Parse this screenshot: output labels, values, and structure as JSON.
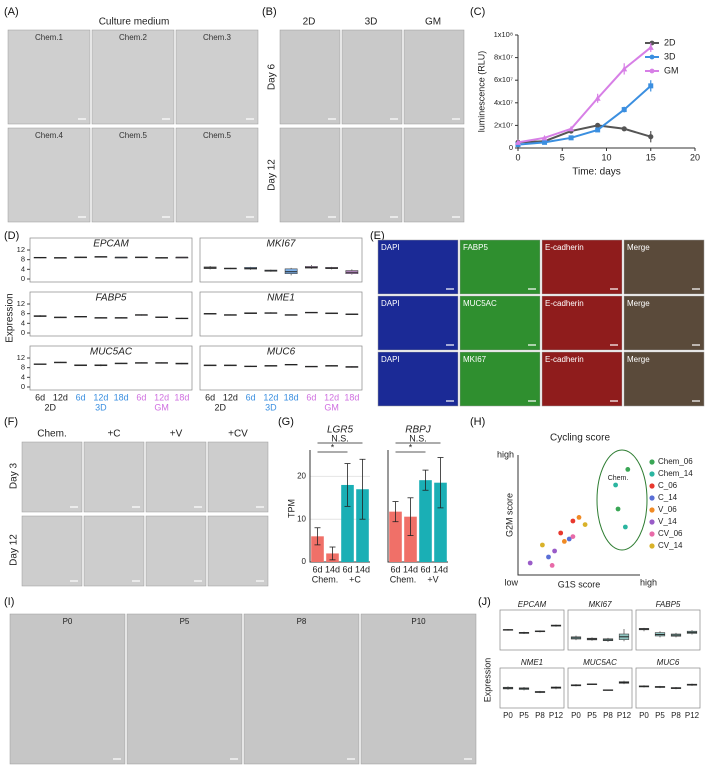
{
  "panel_labels": [
    "(A)",
    "(B)",
    "(C)",
    "(D)",
    "(E)",
    "(F)",
    "(G)",
    "(H)",
    "(I)",
    "(J)"
  ],
  "A": {
    "title": "Culture medium",
    "images": [
      "Chem.1",
      "Chem.2",
      "Chem.3",
      "Chem.4",
      "Chem.5",
      "Chem.5"
    ]
  },
  "B": {
    "columns": [
      "2D",
      "3D",
      "GM"
    ],
    "rows": [
      "Day 6",
      "Day 12"
    ]
  },
  "E": {
    "rows": [
      [
        "DAPI",
        "FABP5",
        "E-cadherin",
        "Merge"
      ],
      [
        "DAPI",
        "MUC5AC",
        "E-cadherin",
        "Merge"
      ],
      [
        "DAPI",
        "MKI67",
        "E-cadherin",
        "Merge"
      ]
    ]
  },
  "F": {
    "columns": [
      "Chem.",
      "+C",
      "+V",
      "+CV"
    ],
    "rows": [
      "Day 3",
      "Day 12"
    ]
  },
  "I": {
    "images": [
      "P0",
      "P5",
      "P8",
      "P10"
    ]
  },
  "chart_data": [
    {
      "type": "line",
      "xlabel": "Time: days",
      "ylabel": "luminescence (RLU)",
      "x": [
        0,
        3,
        6,
        9,
        12,
        15
      ],
      "xlim": [
        0,
        20
      ],
      "xticks": [
        0,
        5,
        10,
        15,
        20
      ],
      "ylim": [
        0,
        100000000
      ],
      "yticks": [
        0,
        {
          "value": 20000000,
          "label": "2x10⁷"
        },
        {
          "value": 40000000,
          "label": "4x10⁷"
        },
        {
          "value": 60000000,
          "label": "6x10⁷"
        },
        {
          "value": 80000000,
          "label": "8x10⁷"
        },
        {
          "value": 100000000,
          "label": "1x10⁸"
        }
      ],
      "legend": "upper right",
      "series": [
        {
          "name": "2D",
          "color": "#555555",
          "values": [
            5000000,
            6000000,
            15000000,
            20000000,
            17000000,
            10000000
          ],
          "errors": [
            500000,
            800000,
            1500000,
            1500000,
            1500000,
            5000000
          ]
        },
        {
          "name": "3D",
          "color": "#3b8fe0",
          "values": [
            3000000,
            5000000,
            9000000,
            16000000,
            34000000,
            55000000
          ],
          "errors": [
            500000,
            800000,
            1200000,
            1500000,
            2500000,
            5000000
          ]
        },
        {
          "name": "GM",
          "color": "#d77fe6",
          "values": [
            5000000,
            9000000,
            17000000,
            44000000,
            70000000,
            89000000
          ],
          "errors": [
            800000,
            1000000,
            2000000,
            4000000,
            5000000,
            4000000
          ]
        }
      ]
    },
    {
      "type": "box",
      "ylabel": "Expression",
      "ylim": [
        0,
        12
      ],
      "yticks": [
        0,
        4,
        8,
        12
      ],
      "groups": [
        {
          "name": "2D",
          "color": "#222222",
          "box_color": "#8c8c8c",
          "categories": [
            "6d",
            "12d"
          ]
        },
        {
          "name": "3D",
          "color": "#3b8fe0",
          "box_color": "#7fb2ea",
          "categories": [
            "6d",
            "12d",
            "18d"
          ]
        },
        {
          "name": "GM",
          "color": "#cf6fe0",
          "box_color": "#dca3e8",
          "categories": [
            "6d",
            "12d",
            "18d"
          ]
        }
      ],
      "facets": [
        {
          "title": "EPCAM",
          "boxes": [
            [
              8.6,
              8.7,
              8.9,
              9.0,
              9.1
            ],
            [
              8.7,
              8.8,
              8.8,
              8.9,
              8.9
            ],
            [
              8.8,
              8.9,
              9.0,
              9.1,
              9.2
            ],
            [
              9.0,
              9.1,
              9.2,
              9.3,
              9.4
            ],
            [
              8.8,
              8.9,
              9.0,
              9.0,
              9.1
            ],
            [
              8.8,
              8.9,
              9.0,
              9.1,
              9.2
            ],
            [
              8.6,
              8.7,
              8.8,
              8.9,
              9.0
            ],
            [
              8.8,
              8.9,
              9.0,
              9.0,
              9.1
            ]
          ]
        },
        {
          "title": "MKI67",
          "boxes": [
            [
              4.0,
              4.3,
              4.6,
              5.0,
              5.4
            ],
            [
              4.1,
              4.2,
              4.4,
              4.5,
              4.6
            ],
            [
              3.8,
              4.1,
              4.4,
              4.8,
              5.0
            ],
            [
              3.0,
              3.2,
              3.4,
              3.7,
              3.9
            ],
            [
              1.5,
              2.2,
              3.0,
              4.2,
              4.6
            ],
            [
              4.2,
              4.5,
              4.8,
              5.2,
              5.8
            ],
            [
              4.0,
              4.3,
              4.5,
              4.8,
              5.0
            ],
            [
              1.8,
              2.2,
              2.8,
              3.5,
              4.0
            ]
          ]
        },
        {
          "title": "FABP5",
          "boxes": [
            [
              6.6,
              6.8,
              7.0,
              7.2,
              7.4
            ],
            [
              6.3,
              6.4,
              6.5,
              6.6,
              6.7
            ],
            [
              6.5,
              6.6,
              6.8,
              6.9,
              7.0
            ],
            [
              6.0,
              6.1,
              6.3,
              6.4,
              6.5
            ],
            [
              6.1,
              6.2,
              6.3,
              6.4,
              6.5
            ],
            [
              7.2,
              7.3,
              7.5,
              7.6,
              7.7
            ],
            [
              6.2,
              6.4,
              6.5,
              6.7,
              6.8
            ],
            [
              5.8,
              5.9,
              6.0,
              6.2,
              6.3
            ]
          ]
        },
        {
          "title": "NME1",
          "boxes": [
            [
              7.8,
              7.9,
              8.0,
              8.1,
              8.2
            ],
            [
              7.3,
              7.4,
              7.5,
              7.6,
              7.7
            ],
            [
              7.9,
              8.0,
              8.2,
              8.4,
              8.5
            ],
            [
              8.0,
              8.2,
              8.3,
              8.4,
              8.6
            ],
            [
              7.3,
              7.4,
              7.5,
              7.6,
              7.7
            ],
            [
              8.3,
              8.4,
              8.5,
              8.6,
              8.7
            ],
            [
              8.0,
              8.1,
              8.2,
              8.3,
              8.4
            ],
            [
              7.6,
              7.7,
              7.8,
              7.9,
              8.0
            ]
          ]
        },
        {
          "title": "MUC5AC",
          "boxes": [
            [
              9.3,
              9.4,
              9.5,
              9.6,
              9.7
            ],
            [
              10.0,
              10.1,
              10.2,
              10.3,
              10.4
            ],
            [
              8.7,
              8.8,
              9.0,
              9.2,
              9.3
            ],
            [
              8.6,
              8.8,
              9.0,
              9.2,
              9.4
            ],
            [
              9.6,
              9.7,
              9.8,
              9.9,
              10.0
            ],
            [
              9.8,
              9.9,
              10.0,
              10.1,
              10.2
            ],
            [
              9.8,
              9.9,
              10.0,
              10.1,
              10.2
            ],
            [
              9.4,
              9.5,
              9.7,
              9.9,
              10.0
            ]
          ]
        },
        {
          "title": "MUC6",
          "boxes": [
            [
              8.8,
              8.9,
              9.0,
              9.1,
              9.2
            ],
            [
              8.8,
              8.9,
              9.0,
              9.1,
              9.2
            ],
            [
              8.3,
              8.4,
              8.5,
              8.7,
              8.8
            ],
            [
              8.6,
              8.7,
              8.8,
              8.9,
              9.0
            ],
            [
              9.1,
              9.2,
              9.3,
              9.4,
              9.5
            ],
            [
              8.3,
              8.4,
              8.5,
              8.6,
              8.7
            ],
            [
              8.6,
              8.7,
              8.8,
              8.9,
              9.0
            ],
            [
              8.0,
              8.1,
              8.3,
              8.5,
              8.6
            ]
          ]
        }
      ]
    },
    {
      "type": "bar",
      "title": "LGR5",
      "ylabel": "TPM",
      "ylim": [
        0,
        25
      ],
      "yticks": [
        0,
        10,
        20
      ],
      "grid": true,
      "groups": [
        {
          "name": "Chem.",
          "color": "#f07068",
          "categories": [
            "6d",
            "14d"
          ]
        },
        {
          "name": "+C",
          "color": "#1aafb5",
          "categories": [
            "6d",
            "14d"
          ]
        }
      ],
      "values": [
        6,
        2,
        18,
        17
      ],
      "errors": [
        2,
        1.5,
        5,
        7
      ],
      "annotations": [
        "*",
        "N.S."
      ]
    },
    {
      "type": "bar",
      "title": "RBPJ",
      "ylim": [
        0,
        85
      ],
      "grid": true,
      "groups": [
        {
          "name": "Chem.",
          "color": "#f07068",
          "categories": [
            "6d",
            "14d"
          ]
        },
        {
          "name": "+V",
          "color": "#1aafb5",
          "categories": [
            "6d",
            "14d"
          ]
        }
      ],
      "values": [
        40,
        36,
        65,
        63
      ],
      "errors": [
        8,
        15,
        8,
        20
      ],
      "annotations": [
        "*",
        "N.S."
      ]
    },
    {
      "type": "scatter",
      "title": "Cycling score",
      "xlabel": "G1S score",
      "ylabel": "G2M score",
      "xlim": [
        0,
        1
      ],
      "ylim": [
        0,
        1
      ],
      "xticks": [
        {
          "value": 0,
          "label": "low"
        },
        {
          "value": 1,
          "label": "high"
        }
      ],
      "yticks": [
        {
          "value": 1,
          "label": "high"
        }
      ],
      "annotation": "Chem.",
      "series": [
        {
          "name": "Chem_06",
          "color": "#3aa655",
          "x": [
            0.9,
            0.82
          ],
          "values": [
            0.88,
            0.55
          ]
        },
        {
          "name": "Chem_14",
          "color": "#2bb5a0",
          "x": [
            0.8,
            0.88
          ],
          "values": [
            0.75,
            0.4
          ]
        },
        {
          "name": "C_06",
          "color": "#e8382e",
          "x": [
            0.45,
            0.35
          ],
          "values": [
            0.45,
            0.35
          ]
        },
        {
          "name": "C_14",
          "color": "#5a6fd6",
          "x": [
            0.42,
            0.25
          ],
          "values": [
            0.3,
            0.15
          ]
        },
        {
          "name": "V_06",
          "color": "#f08a24",
          "x": [
            0.5,
            0.38
          ],
          "values": [
            0.48,
            0.28
          ]
        },
        {
          "name": "V_14",
          "color": "#9a5cc8",
          "x": [
            0.3,
            0.1
          ],
          "values": [
            0.2,
            0.1
          ]
        },
        {
          "name": "CV_06",
          "color": "#e86aa8",
          "x": [
            0.28,
            0.45
          ],
          "values": [
            0.08,
            0.32
          ]
        },
        {
          "name": "CV_14",
          "color": "#d9b22a",
          "x": [
            0.55,
            0.2
          ],
          "values": [
            0.42,
            0.25
          ]
        }
      ]
    },
    {
      "type": "box",
      "ylabel": "Expression",
      "ylim": [
        0,
        10
      ],
      "color": "#8fc4c0",
      "categories": [
        "P0",
        "P5",
        "P8",
        "P12"
      ],
      "facets": [
        {
          "title": "EPCAM",
          "boxes": [
            [
              6.2,
              6.4,
              6.5,
              6.6,
              6.8
            ],
            [
              5.0,
              5.2,
              5.4,
              5.6,
              5.8
            ],
            [
              5.6,
              5.8,
              6.0,
              6.1,
              6.3
            ],
            [
              7.6,
              7.8,
              8.0,
              8.2,
              8.4
            ]
          ]
        },
        {
          "title": "MKI67",
          "boxes": [
            [
              2.8,
              3.2,
              3.6,
              4.0,
              4.4
            ],
            [
              2.6,
              2.9,
              3.2,
              3.5,
              3.8
            ],
            [
              2.2,
              2.6,
              2.9,
              3.3,
              3.6
            ],
            [
              2.4,
              3.0,
              4.0,
              5.0,
              6.8
            ]
          ]
        },
        {
          "title": "FABP5",
          "boxes": [
            [
              6.0,
              6.5,
              6.8,
              7.0,
              7.2
            ],
            [
              3.8,
              4.3,
              4.8,
              5.5,
              6.0
            ],
            [
              3.8,
              4.2,
              4.6,
              5.0,
              5.4
            ],
            [
              4.8,
              5.2,
              5.6,
              6.0,
              6.4
            ]
          ]
        },
        {
          "title": "NME1",
          "boxes": [
            [
              5.8,
              6.1,
              6.4,
              6.7,
              7.0
            ],
            [
              5.6,
              5.9,
              6.2,
              6.5,
              6.8
            ],
            [
              4.6,
              4.8,
              5.0,
              5.2,
              5.4
            ],
            [
              6.0,
              6.3,
              6.6,
              6.8,
              7.0
            ]
          ]
        },
        {
          "title": "MUC5AC",
          "boxes": [
            [
              7.0,
              7.2,
              7.4,
              7.6,
              7.8
            ],
            [
              7.6,
              7.7,
              7.8,
              7.9,
              8.0
            ],
            [
              5.5,
              5.6,
              5.7,
              5.8,
              5.9
            ],
            [
              7.8,
              8.1,
              8.4,
              8.7,
              9.0
            ]
          ]
        },
        {
          "title": "MUC6",
          "boxes": [
            [
              6.6,
              6.8,
              7.0,
              7.2,
              7.4
            ],
            [
              6.4,
              6.6,
              6.8,
              7.0,
              7.2
            ],
            [
              6.0,
              6.2,
              6.4,
              6.6,
              6.8
            ],
            [
              7.2,
              7.4,
              7.6,
              7.8,
              8.0
            ]
          ]
        }
      ]
    }
  ]
}
